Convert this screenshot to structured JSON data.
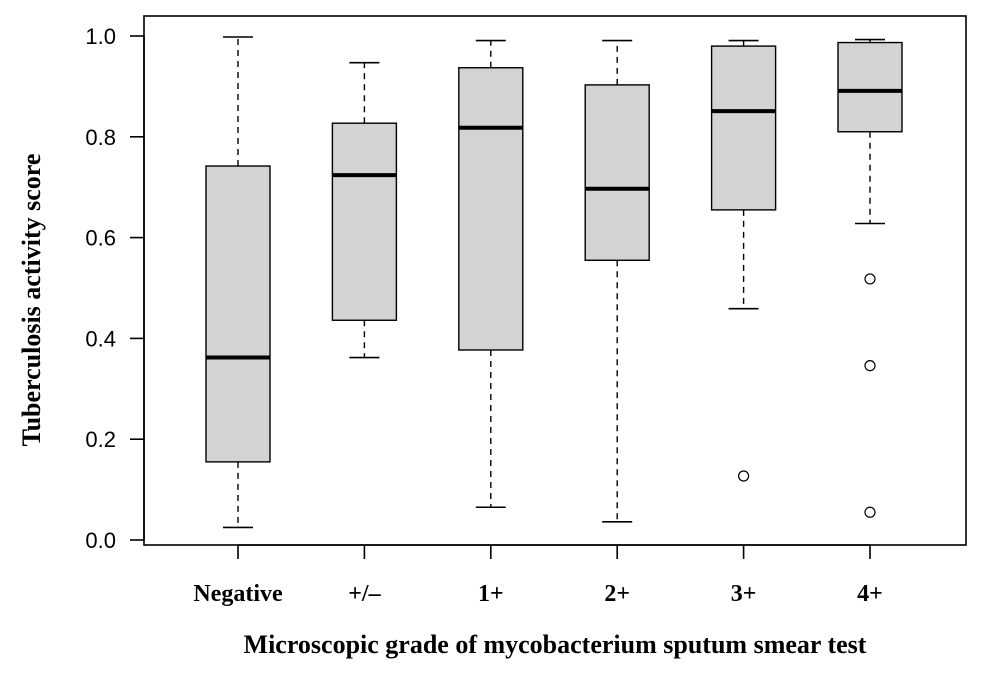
{
  "chart_data": {
    "type": "boxplot",
    "title": "",
    "xlabel": "Microscopic grade of mycobacterium sputum smear test",
    "ylabel": "Tuberculosis activity score",
    "ylim": [
      0.0,
      1.0
    ],
    "yticks": [
      "0.0",
      "0.2",
      "0.4",
      "0.6",
      "0.8",
      "1.0"
    ],
    "grid": false,
    "categories": [
      "Negative",
      "+/–",
      "1+",
      "2+",
      "3+",
      "4+"
    ],
    "boxes": [
      {
        "name": "Negative",
        "whisker_low": 0.025,
        "q1": 0.155,
        "median": 0.362,
        "q3": 0.742,
        "whisker_high": 0.998,
        "outliers": []
      },
      {
        "name": "+/–",
        "whisker_low": 0.362,
        "q1": 0.436,
        "median": 0.724,
        "q3": 0.827,
        "whisker_high": 0.947,
        "outliers": []
      },
      {
        "name": "1+",
        "whisker_low": 0.065,
        "q1": 0.377,
        "median": 0.818,
        "q3": 0.937,
        "whisker_high": 0.991,
        "outliers": []
      },
      {
        "name": "2+",
        "whisker_low": 0.036,
        "q1": 0.555,
        "median": 0.697,
        "q3": 0.903,
        "whisker_high": 0.991,
        "outliers": []
      },
      {
        "name": "3+",
        "whisker_low": 0.459,
        "q1": 0.655,
        "median": 0.851,
        "q3": 0.98,
        "whisker_high": 0.991,
        "outliers": [
          0.127
        ]
      },
      {
        "name": "4+",
        "whisker_low": 0.628,
        "q1": 0.81,
        "median": 0.891,
        "q3": 0.987,
        "whisker_high": 0.993,
        "outliers": [
          0.518,
          0.346,
          0.055
        ]
      }
    ],
    "colors": {
      "box_fill": "#d3d3d3",
      "stroke": "#000000"
    }
  }
}
